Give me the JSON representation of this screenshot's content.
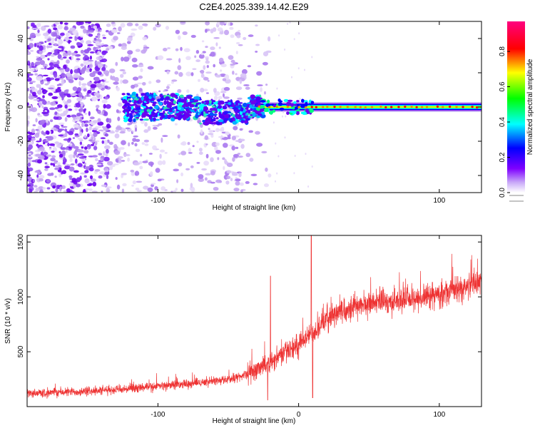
{
  "title": "C2E4.2025.339.14.42.E29",
  "chart_data": [
    {
      "type": "heatmap",
      "title": "C2E4.2025.339.14.42.E29",
      "xlabel": "Height of straight line (km)",
      "ylabel": "Frequency (Hz)",
      "xlim": [
        -193,
        130
      ],
      "ylim": [
        -50,
        50
      ],
      "xticks": [
        -100,
        0,
        100
      ],
      "xtick_labels": [
        "-100",
        "",
        "100"
      ],
      "yticks": [
        -40,
        -20,
        0,
        20,
        40
      ],
      "ytick_labels": [
        "-40",
        "-20",
        "0",
        "20",
        "40"
      ],
      "description_of_content": "narrow spectral line near 0 Hz for heights above about -30 km; diffuse broadband scatter below",
      "signal_center_hz": 0,
      "signal_onset_km": -30,
      "colorbar": {
        "label": "Normalized spectral amplitude",
        "range": [
          0,
          0.97
        ],
        "ticks": [
          0,
          0.2,
          0.4,
          0.6,
          0.8
        ],
        "tick_labels": [
          "0.0",
          "0.2",
          "0.4",
          "0.6",
          "0.8"
        ],
        "colors": [
          "#ffffff",
          "#7f00ff",
          "#0000ff",
          "#00ffff",
          "#00ff00",
          "#ffff00",
          "#ff0000",
          "#ff0080"
        ]
      }
    },
    {
      "type": "line",
      "title": "",
      "xlabel": "Height of straight line (km)",
      "ylabel": "SNR (10 * v/v)",
      "xlim": [
        -193,
        130
      ],
      "ylim": [
        0,
        1560
      ],
      "xticks": [
        -100,
        0,
        100
      ],
      "xtick_labels": [
        "-100",
        "0",
        "100"
      ],
      "yticks": [
        500,
        1000,
        1500
      ],
      "ytick_labels": [
        "500",
        "1000",
        "1500"
      ],
      "color": "#ee3333",
      "trend_x": [
        -193,
        -150,
        -120,
        -100,
        -70,
        -50,
        -40,
        -30,
        -20,
        -10,
        0,
        10,
        20,
        30,
        40,
        60,
        80,
        100,
        120,
        130
      ],
      "trend_y": [
        120,
        140,
        160,
        185,
        220,
        250,
        280,
        340,
        410,
        500,
        560,
        680,
        800,
        880,
        920,
        950,
        980,
        1020,
        1100,
        1150
      ],
      "spikes": [
        {
          "x": 9,
          "y": 1560
        },
        {
          "x": -20,
          "y": 1190
        },
        {
          "x": 10,
          "y": 80
        },
        {
          "x": -22,
          "y": 60
        }
      ]
    }
  ]
}
